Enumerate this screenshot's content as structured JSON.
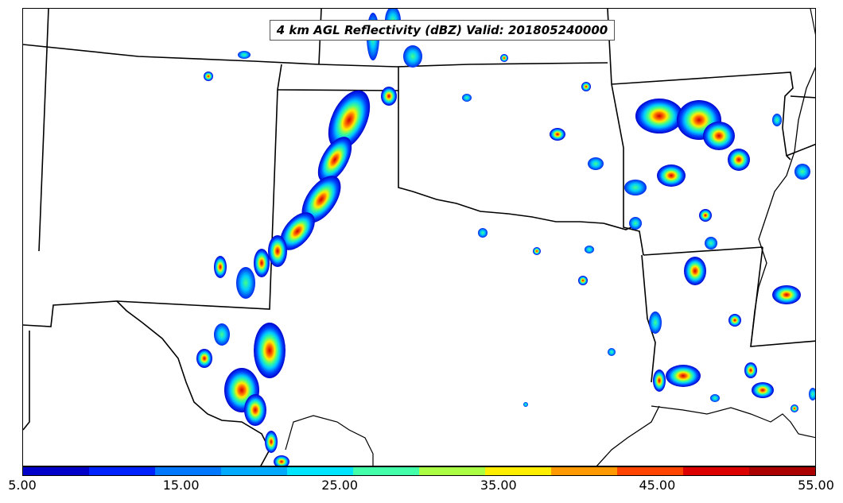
{
  "title": "4 km AGL Reflectivity (dBZ) Valid: 201805240000",
  "colorbar": {
    "colors": [
      "#0000c8",
      "#0022ff",
      "#0077ff",
      "#00aaff",
      "#00e5ff",
      "#44ffaa",
      "#aaff44",
      "#ffee00",
      "#ff9900",
      "#ff4400",
      "#dd0000",
      "#aa0000"
    ],
    "tick_labels": [
      "5.00",
      "15.00",
      "25.00",
      "35.00",
      "45.00",
      "55.00"
    ]
  },
  "legend_units": "dBZ",
  "map_region": "southern-plains-us"
}
